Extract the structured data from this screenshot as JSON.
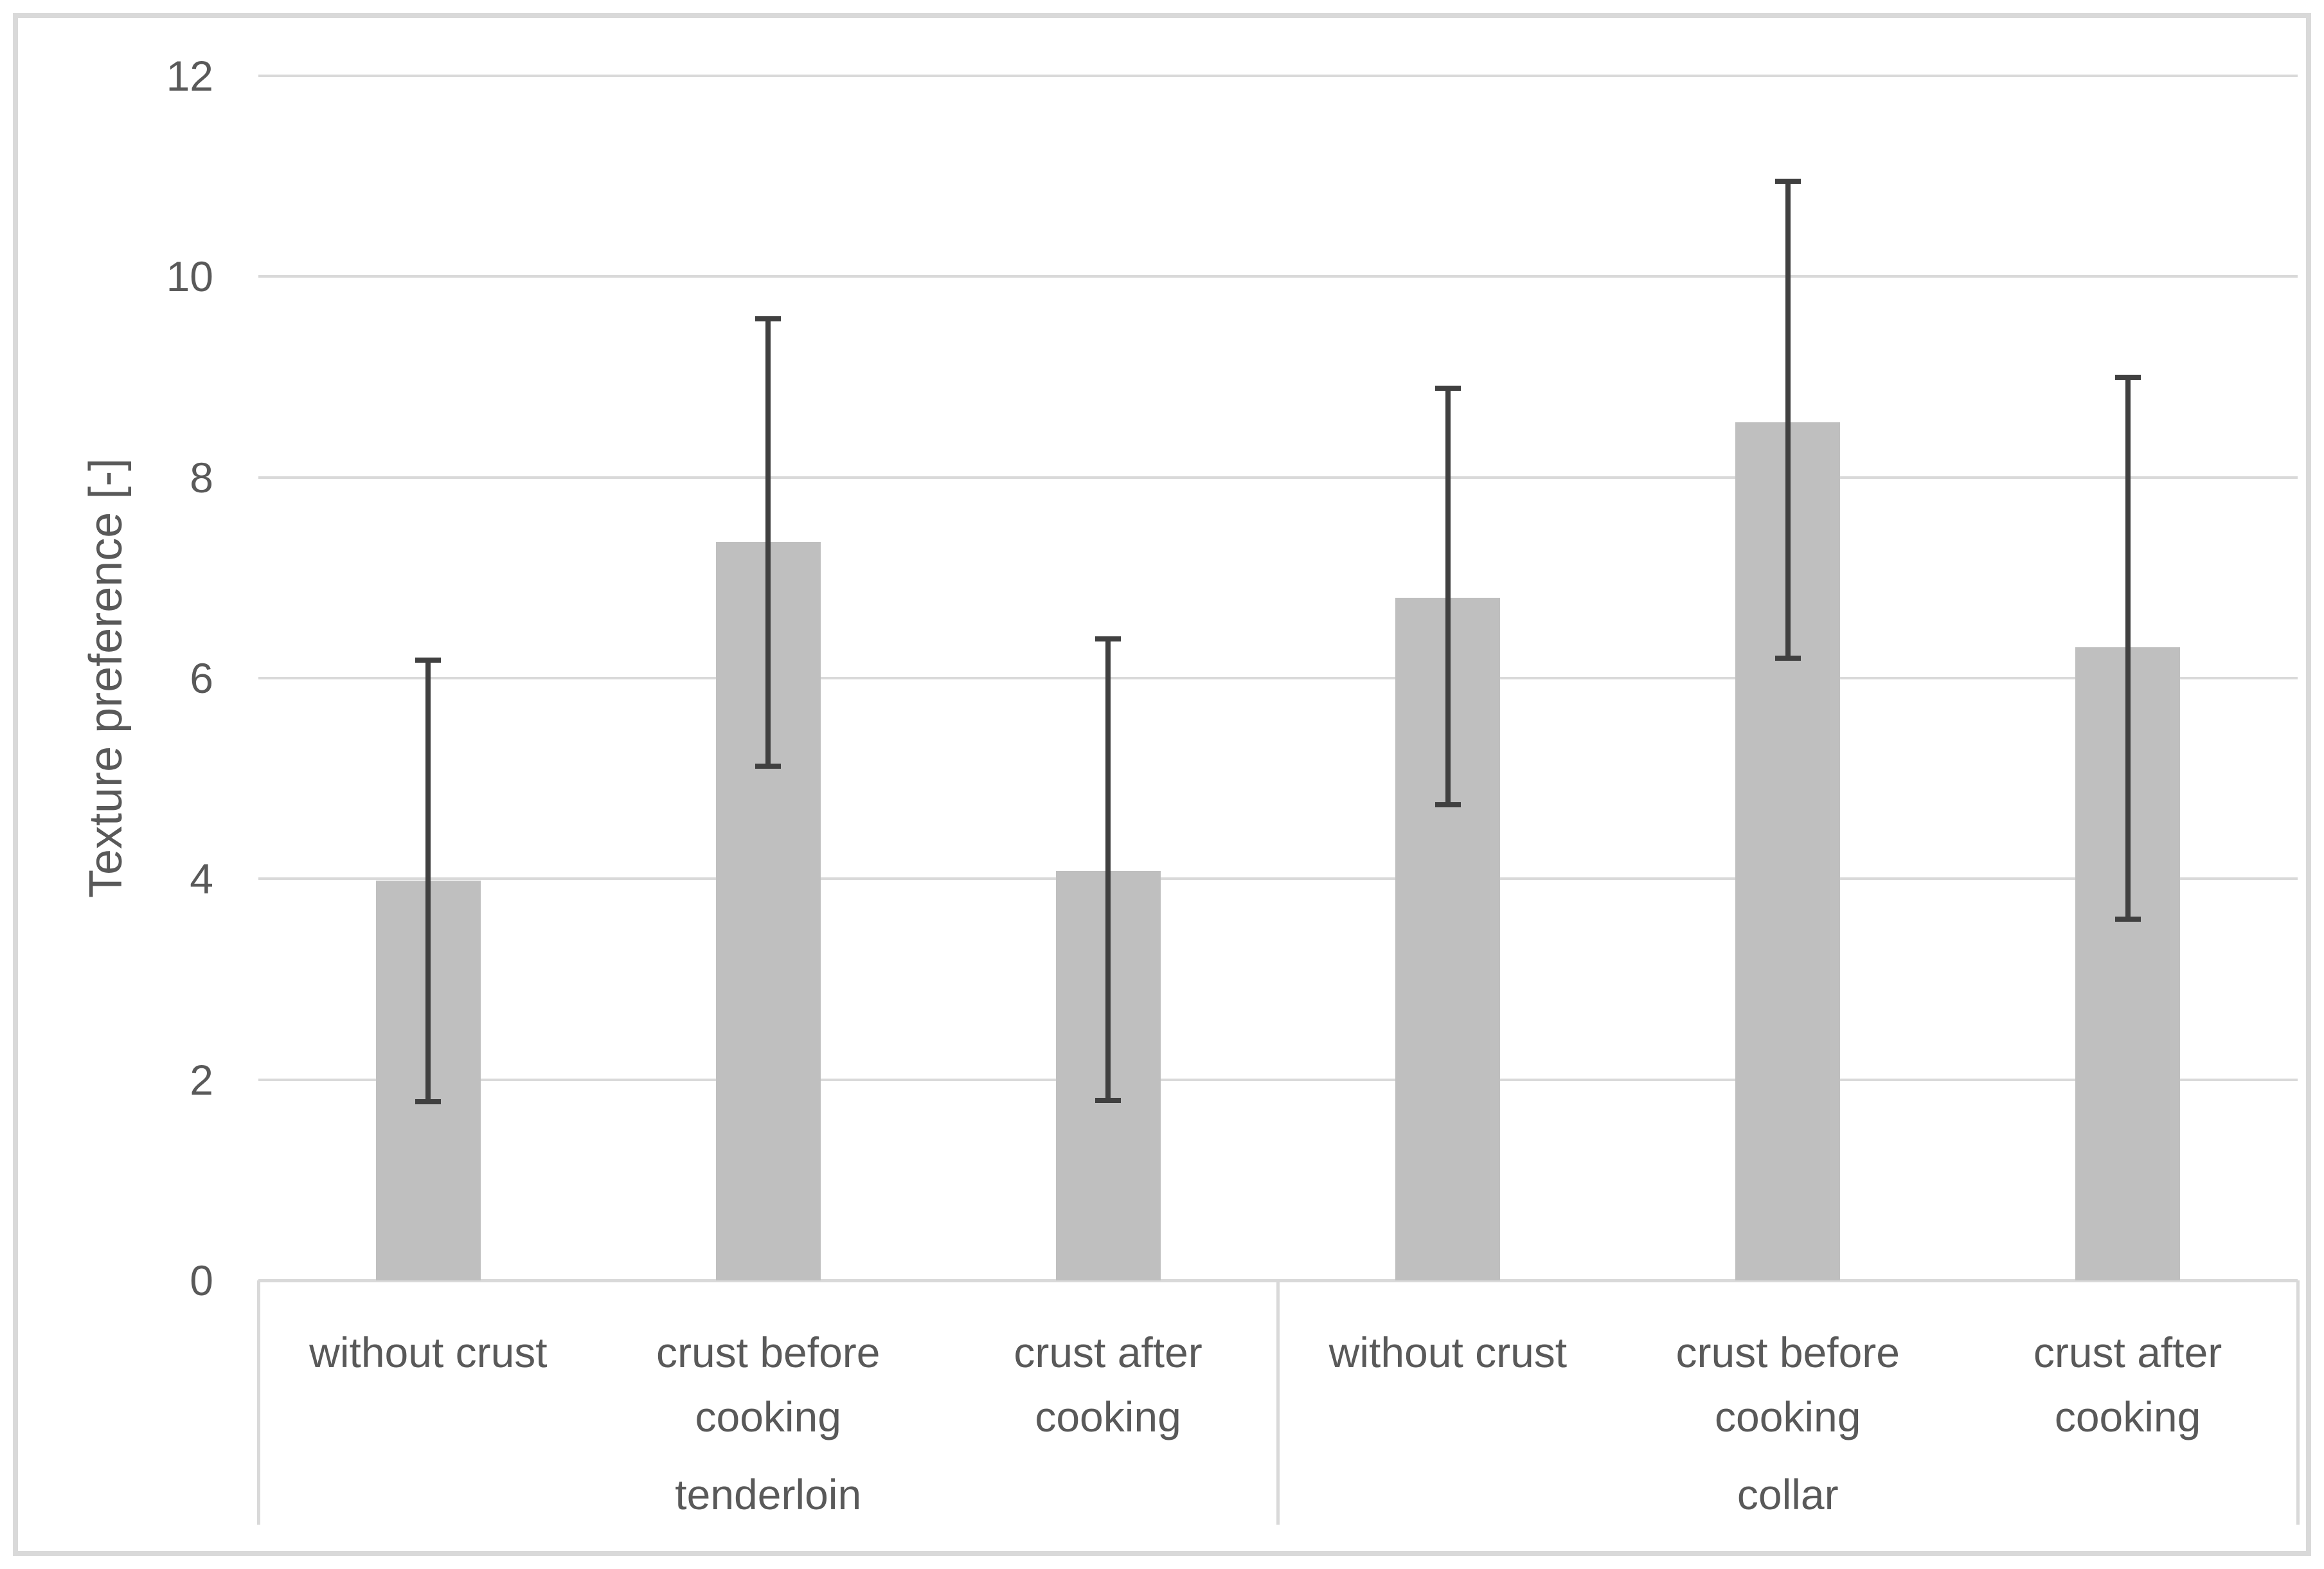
{
  "chart_data": {
    "type": "bar",
    "title": "",
    "ylabel": "Texture preference [-]",
    "xlabel": "",
    "ylim": [
      0,
      12
    ],
    "ytick_step": 2,
    "yticks": [
      0,
      2,
      4,
      6,
      8,
      10,
      12
    ],
    "ytick_labels": [
      "0",
      "2",
      "4",
      "6",
      "8",
      "10",
      "12"
    ],
    "grid": true,
    "legend": false,
    "groups": [
      {
        "label": "tenderloin",
        "categories": [
          "without crust",
          "crust before cooking",
          "crust after cooking"
        ]
      },
      {
        "label": "collar",
        "categories": [
          "without crust",
          "crust before cooking",
          "crust after cooking"
        ]
      }
    ],
    "series": [
      {
        "name": "Texture preference",
        "points": [
          {
            "group": "tenderloin",
            "category": "without crust",
            "value": 3.98,
            "error_min": 1.78,
            "error_max": 6.18
          },
          {
            "group": "tenderloin",
            "category": "crust before cooking",
            "value": 7.36,
            "error_min": 5.12,
            "error_max": 9.58
          },
          {
            "group": "tenderloin",
            "category": "crust after cooking",
            "value": 4.08,
            "error_min": 1.79,
            "error_max": 6.39
          },
          {
            "group": "collar",
            "category": "without crust",
            "value": 6.8,
            "error_min": 4.74,
            "error_max": 8.89
          },
          {
            "group": "collar",
            "category": "crust before cooking",
            "value": 8.55,
            "error_min": 6.2,
            "error_max": 10.95
          },
          {
            "group": "collar",
            "category": "crust after cooking",
            "value": 6.31,
            "error_min": 3.6,
            "error_max": 9.0
          }
        ]
      }
    ],
    "colors": {
      "bar_fill": "#bfbfbf",
      "error_bar": "#404040",
      "gridline": "#d9d9d9",
      "axis_line": "#d9d9d9",
      "label_box_border": "#d9d9d9",
      "text": "#595959",
      "chart_border": "#d9d9d9",
      "background": "#ffffff"
    }
  }
}
